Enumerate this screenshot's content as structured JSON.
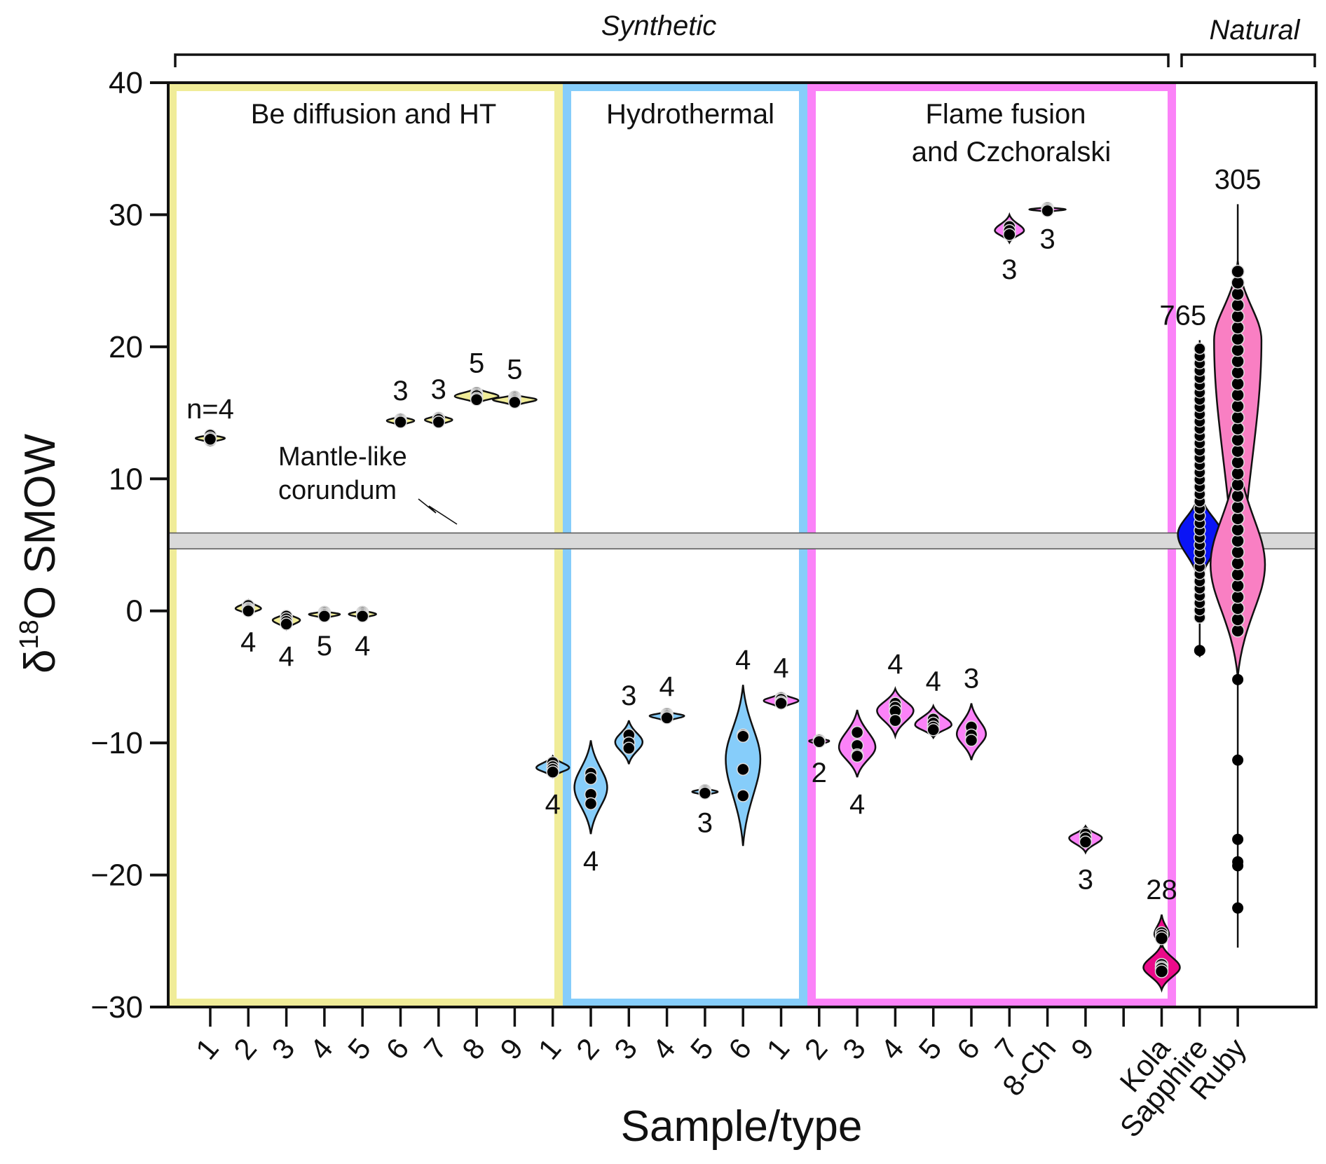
{
  "chart_data": {
    "type": "violin",
    "title": "",
    "xlabel": "Sample/type",
    "ylabel": "δ18O SMOW",
    "ylabel_parts": {
      "delta": "δ",
      "sup": "18",
      "rest": "O SMOW"
    },
    "ylim": [
      -30,
      40
    ],
    "yticks": [
      -30,
      -20,
      -10,
      0,
      10,
      20,
      30,
      40
    ],
    "ytick_labels": [
      "−30",
      "−20",
      "−10",
      "0",
      "10",
      "20",
      "30",
      "40"
    ],
    "grid": false,
    "top_brackets": [
      {
        "label": "Synthetic",
        "from_category": 0,
        "to_category": 25
      },
      {
        "label": "Natural",
        "from_category": 26,
        "to_category": 28
      }
    ],
    "groups": [
      {
        "label": "Be diffusion and HT",
        "color": "#f0ec98",
        "categories": [
          0,
          8
        ]
      },
      {
        "label": "Hydrothermal",
        "color": "#86cdfa",
        "categories": [
          9,
          14
        ]
      },
      {
        "label": "Flame fusion and Czchoralski",
        "label_lines": [
          "Flame fusion",
          "and Czchoralski"
        ],
        "color": "#fb82f8",
        "categories": [
          15,
          25
        ]
      },
      {
        "label": "",
        "color": "#ffffff",
        "categories": [
          26,
          28
        ]
      }
    ],
    "mantle_band": {
      "label_lines": [
        "Mantle-like",
        "corundum"
      ],
      "range": [
        4.7,
        5.9
      ],
      "color": "#d9d9d9"
    },
    "categories": [
      "1",
      "2",
      "3",
      "4",
      "5",
      "6",
      "7",
      "8",
      "9",
      "1",
      "2",
      "3",
      "4",
      "5",
      "6",
      "1",
      "2",
      "3",
      "4",
      "5",
      "6",
      "7",
      "8-Ch",
      "9",
      "",
      "Kola",
      "Sapphire",
      "Ruby"
    ],
    "series": [
      {
        "category": "1",
        "group": "Be diffusion and HT",
        "n_label": "n=4",
        "n_pos": "above",
        "fill": "#f0ec98",
        "points": [
          13.3,
          13.1,
          12.9,
          13.0
        ],
        "range": [
          12.7,
          13.4
        ],
        "width": 0.8
      },
      {
        "category": "2",
        "group": "Be diffusion and HT",
        "n_label": "4",
        "n_pos": "below",
        "fill": "#f0ec98",
        "points": [
          0.4,
          0.2,
          0.1,
          0.0
        ],
        "range": [
          -0.3,
          0.8
        ],
        "width": 0.7
      },
      {
        "category": "3",
        "group": "Be diffusion and HT",
        "n_label": "4",
        "n_pos": "below",
        "fill": "#f0ec98",
        "points": [
          -0.4,
          -0.6,
          -0.8,
          -1.0
        ],
        "range": [
          -1.4,
          -0.1
        ],
        "width": 0.75
      },
      {
        "category": "4",
        "group": "Be diffusion and HT",
        "n_label": "5",
        "n_pos": "below",
        "fill": "#f0ec98",
        "points": [
          -0.1,
          -0.2,
          -0.3,
          -0.3,
          -0.4
        ],
        "range": [
          -0.6,
          0.0
        ],
        "width": 0.85
      },
      {
        "category": "5",
        "group": "Be diffusion and HT",
        "n_label": "4",
        "n_pos": "below",
        "fill": "#f0ec98",
        "points": [
          -0.1,
          -0.2,
          -0.3,
          -0.4
        ],
        "range": [
          -0.6,
          0.1
        ],
        "width": 0.75
      },
      {
        "category": "6",
        "group": "Be diffusion and HT",
        "n_label": "3",
        "n_pos": "above",
        "fill": "#f0ec98",
        "points": [
          14.5,
          14.4,
          14.3
        ],
        "range": [
          14.0,
          14.8
        ],
        "width": 0.75
      },
      {
        "category": "7",
        "group": "Be diffusion and HT",
        "n_label": "3",
        "n_pos": "above",
        "fill": "#f0ec98",
        "points": [
          14.6,
          14.5,
          14.3
        ],
        "range": [
          14.0,
          14.9
        ],
        "width": 0.75
      },
      {
        "category": "8",
        "group": "Be diffusion and HT",
        "n_label": "5",
        "n_pos": "above",
        "fill": "#f0ec98",
        "points": [
          16.5,
          16.4,
          16.3,
          16.1,
          16.0
        ],
        "range": [
          15.7,
          16.9
        ],
        "width": 1.2
      },
      {
        "category": "9",
        "group": "Be diffusion and HT",
        "n_label": "5",
        "n_pos": "above",
        "fill": "#f0ec98",
        "points": [
          16.2,
          16.1,
          16.0,
          15.9,
          15.8
        ],
        "range": [
          15.5,
          16.4
        ],
        "width": 1.2
      },
      {
        "category": "1",
        "group": "Hydrothermal",
        "n_label": "4",
        "n_pos": "below",
        "fill": "#86cdfa",
        "points": [
          -11.5,
          -11.8,
          -12.0,
          -12.2
        ],
        "range": [
          -12.6,
          -11.0
        ],
        "width": 0.9
      },
      {
        "category": "2",
        "group": "Hydrothermal",
        "n_label": "4",
        "n_pos": "below",
        "fill": "#86cdfa",
        "points": [
          -12.3,
          -12.7,
          -13.9,
          -14.6
        ],
        "range": [
          -16.9,
          -9.8
        ],
        "width": 0.9
      },
      {
        "category": "3",
        "group": "Hydrothermal",
        "n_label": "3",
        "n_pos": "above",
        "fill": "#86cdfa",
        "points": [
          -9.4,
          -10.0,
          -10.4
        ],
        "range": [
          -11.6,
          -8.3
        ],
        "width": 0.75
      },
      {
        "category": "4",
        "group": "Hydrothermal",
        "n_label": "4",
        "n_pos": "above",
        "fill": "#86cdfa",
        "points": [
          -7.8,
          -7.9,
          -8.0,
          -8.1
        ],
        "range": [
          -8.4,
          -7.6
        ],
        "width": 0.95
      },
      {
        "category": "5",
        "group": "Hydrothermal",
        "n_label": "3",
        "n_pos": "below",
        "fill": "#86cdfa",
        "points": [
          -13.6,
          -13.7,
          -13.8
        ],
        "range": [
          -14.0,
          -13.4
        ],
        "width": 0.7
      },
      {
        "category": "6",
        "group": "Hydrothermal",
        "n_label": "4",
        "n_pos": "above",
        "fill": "#86cdfa",
        "points": [
          -9.4,
          -9.5,
          -12.0,
          -14.0
        ],
        "range": [
          -17.8,
          -5.6
        ],
        "width": 0.95
      },
      {
        "category": "1",
        "group": "Flame fusion and Czchoralski",
        "n_label": "4",
        "n_pos": "above",
        "fill": "#fb82f8",
        "points": [
          -6.6,
          -6.7,
          -6.9,
          -7.0
        ],
        "range": [
          -7.4,
          -6.2
        ],
        "width": 0.95
      },
      {
        "category": "2",
        "group": "Flame fusion and Czchoralski",
        "n_label": "2",
        "n_pos": "below",
        "fill": "#fb82f8",
        "points": [
          -9.8,
          -9.9
        ],
        "range": [
          -10.2,
          -9.6
        ],
        "width": 0.55
      },
      {
        "category": "3",
        "group": "Flame fusion and Czchoralski",
        "n_label": "4",
        "n_pos": "below",
        "fill": "#fb82f8",
        "points": [
          -9.2,
          -10.2,
          -10.9,
          -11.0
        ],
        "range": [
          -12.6,
          -7.5
        ],
        "width": 1.0
      },
      {
        "category": "4",
        "group": "Flame fusion and Czchoralski",
        "n_label": "4",
        "n_pos": "above",
        "fill": "#fb82f8",
        "points": [
          -7.0,
          -7.3,
          -7.6,
          -8.3
        ],
        "range": [
          -9.5,
          -5.9
        ],
        "width": 1.0
      },
      {
        "category": "5",
        "group": "Flame fusion and Czchoralski",
        "n_label": "4",
        "n_pos": "above",
        "fill": "#fb82f8",
        "points": [
          -8.2,
          -8.5,
          -8.8,
          -9.0
        ],
        "range": [
          -9.6,
          -7.2
        ],
        "width": 1.0
      },
      {
        "category": "6",
        "group": "Flame fusion and Czchoralski",
        "n_label": "3",
        "n_pos": "above",
        "fill": "#fb82f8",
        "points": [
          -8.8,
          -9.4,
          -9.8
        ],
        "range": [
          -11.3,
          -7.0
        ],
        "width": 0.8
      },
      {
        "category": "7",
        "group": "Flame fusion and Czchoralski",
        "n_label": "3",
        "n_pos": "below",
        "fill": "#fb82f8",
        "points": [
          29.1,
          28.8,
          28.5
        ],
        "range": [
          27.9,
          30.0
        ],
        "width": 0.8
      },
      {
        "category": "8-Ch",
        "group": "Flame fusion and Czchoralski",
        "n_label": "3",
        "n_pos": "below",
        "fill": "#fb82f8",
        "points": [
          30.5,
          30.4,
          30.3
        ],
        "range": [
          30.2,
          30.6
        ],
        "width": 1.0
      },
      {
        "category": "9",
        "group": "Flame fusion and Czchoralski",
        "n_label": "3",
        "n_pos": "below",
        "fill": "#fb82f8",
        "points": [
          -16.9,
          -17.2,
          -17.5
        ],
        "range": [
          -18.3,
          -16.3
        ],
        "width": 0.9
      },
      {
        "category": "Kola",
        "group": "Natural",
        "n_label": "28",
        "n_pos": "above",
        "fill": "#eb0a8a",
        "points": [
          -24.4,
          -24.6,
          -24.8,
          -26.8,
          -27.0,
          -27.1,
          -27.3
        ],
        "range": [
          -28.7,
          -23.0
        ],
        "width": 1.0
      },
      {
        "category": "Sapphire",
        "group": "Natural",
        "n_label": "765",
        "n_pos": "above",
        "fill": "#0a14f5",
        "points_range": [
          -3.2,
          20.0
        ],
        "range": [
          -3.5,
          20.5
        ],
        "mode": 6.0,
        "width": 1.2
      },
      {
        "category": "Ruby",
        "group": "Natural",
        "n_label": "305",
        "n_pos": "above",
        "fill": "#f97fc3",
        "points_range": [
          -22.5,
          25.8
        ],
        "outliers": [
          -5.2,
          -11.3,
          -17.3,
          -19.0,
          -19.3,
          -22.5
        ],
        "range": [
          -25.5,
          30.8
        ],
        "width": 1.3
      }
    ]
  }
}
